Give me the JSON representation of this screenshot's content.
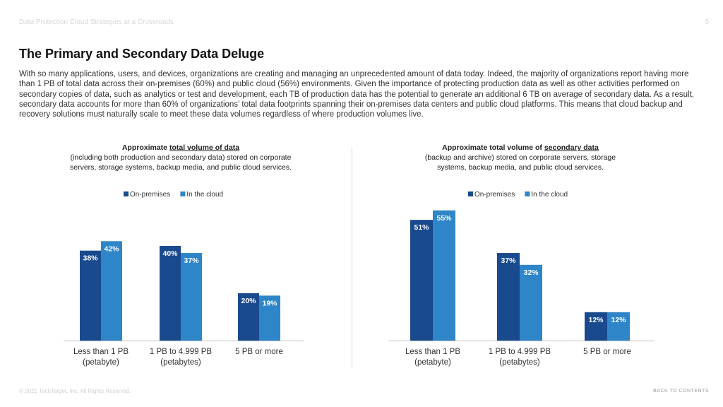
{
  "header": {
    "doc_title": "Data Protection Cloud Strategies at a Crossroads",
    "page_number": "5"
  },
  "page_title": "The Primary and Secondary Data Deluge",
  "intro": "With so many applications, users, and devices, organizations are creating and managing an unprecedented amount of data today. Indeed, the majority of organizations report having more than 1 PB of total data across their on-premises (60%) and public cloud (56%) environments. Given the importance of protecting production data as well as other activities performed on secondary copies of data, such as analytics or test and development, each TB of production data has the potential to generate an additional 6 TB on average of secondary data. As a result, secondary data accounts for more than 60% of organizations’ total data footprints spanning their on-premises data centers and public cloud platforms. This means that cloud backup and recovery solutions must naturally scale to meet these data volumes regardless of where production volumes live.",
  "colors": {
    "on_premises": "#1a4a8e",
    "in_the_cloud": "#2e86c8"
  },
  "chart_data": [
    {
      "type": "bar",
      "caption": {
        "lead_prefix": "Approximate ",
        "lead_underlined": "total volume of data",
        "lead_suffix": "",
        "rest_line1": "(including both production and secondary data) stored on corporate",
        "rest_line2": "servers, storage systems, backup media, and public cloud services."
      },
      "categories": [
        [
          "Less than 1 PB",
          "(petabyte)"
        ],
        [
          "1 PB to 4.999 PB",
          "(petabytes)"
        ],
        [
          "5 PB or more",
          ""
        ]
      ],
      "series": [
        {
          "name": "On-premises",
          "values": [
            38,
            40,
            20
          ],
          "labels": [
            "38%",
            "40%",
            "20%"
          ]
        },
        {
          "name": "In the cloud",
          "values": [
            42,
            37,
            19
          ],
          "labels": [
            "42%",
            "37%",
            "19%"
          ]
        }
      ],
      "ylim": [
        0,
        60
      ],
      "legend": "top-center",
      "grid": false
    },
    {
      "type": "bar",
      "caption": {
        "lead_prefix": "Approximate total volume of ",
        "lead_underlined": "secondary data",
        "lead_suffix": "",
        "rest_line1": "(backup and archive) stored on corporate servers, storage",
        "rest_line2": "systems, backup media, and public cloud services."
      },
      "categories": [
        [
          "Less than 1 PB",
          "(petabyte)"
        ],
        [
          "1 PB to 4.999 PB",
          "(petabytes)"
        ],
        [
          "5 PB or more",
          ""
        ]
      ],
      "series": [
        {
          "name": "On-premises",
          "values": [
            51,
            37,
            12
          ],
          "labels": [
            "51%",
            "37%",
            "12%"
          ]
        },
        {
          "name": "In the cloud",
          "values": [
            55,
            32,
            12
          ],
          "labels": [
            "55%",
            "32%",
            "12%"
          ]
        }
      ],
      "ylim": [
        0,
        60
      ],
      "legend": "top-center",
      "grid": false
    }
  ],
  "footer": {
    "copyright": "© 2021 TechTarget, Inc. All Rights Reserved.",
    "back_link": "BACK TO CONTENTS"
  }
}
